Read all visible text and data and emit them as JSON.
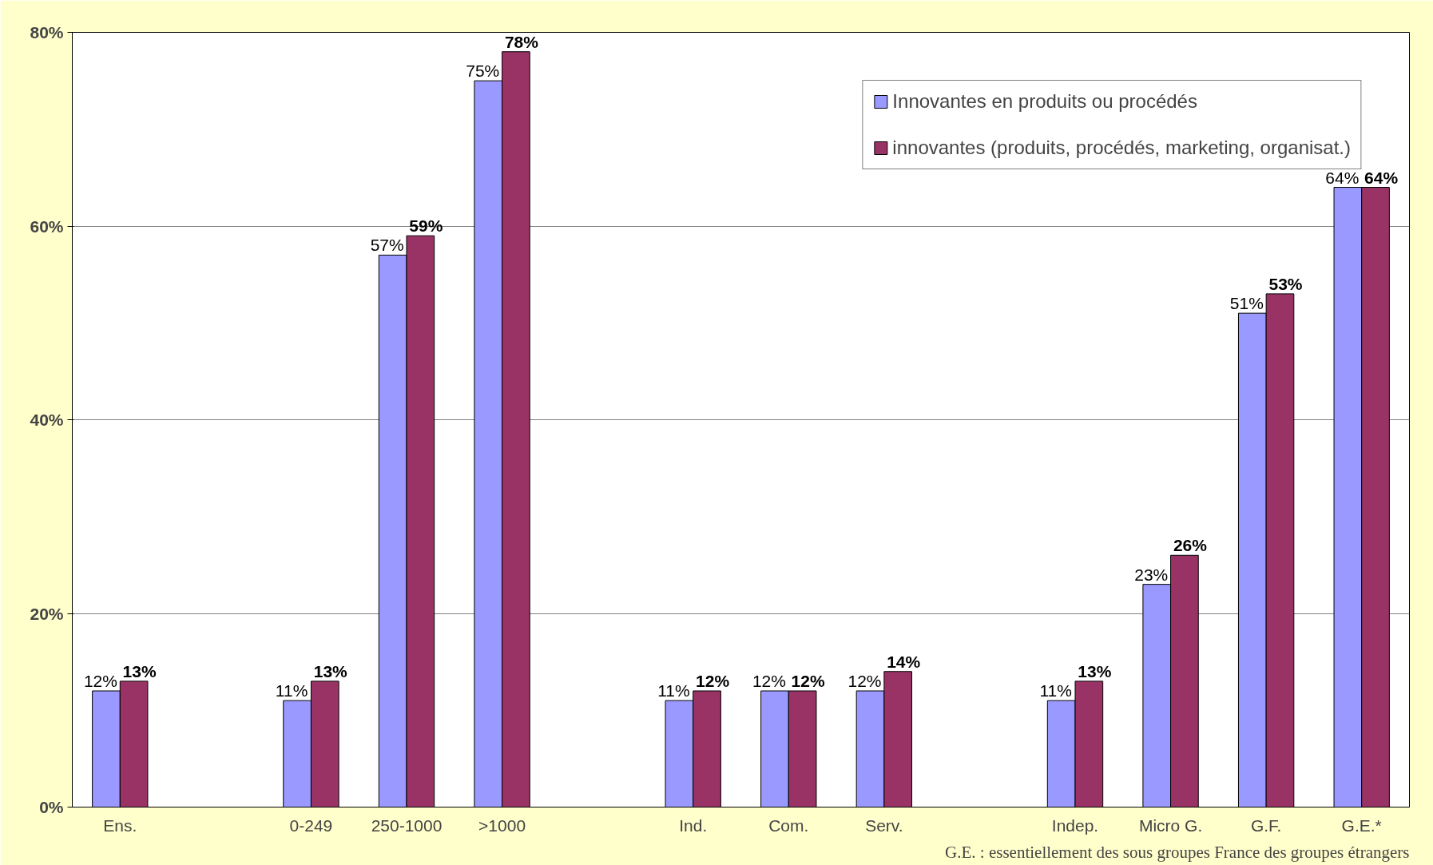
{
  "chart_data": {
    "type": "bar",
    "categories": [
      "Ens.",
      null,
      "0-249",
      "250-1000",
      ">1000",
      null,
      "Ind.",
      "Com.",
      "Serv.",
      null,
      "Indep.",
      "Micro G.",
      "G.F.",
      "G.E.*"
    ],
    "series": [
      {
        "name": "Innovantes en produits ou procédés",
        "color": "#9999ff",
        "values": [
          12,
          null,
          11,
          57,
          75,
          null,
          11,
          12,
          12,
          null,
          11,
          23,
          51,
          64
        ],
        "value_labels": [
          "12%",
          null,
          "11%",
          "57%",
          "75%",
          null,
          "11%",
          "12%",
          "12%",
          null,
          "11%",
          "23%",
          "51%",
          "64%"
        ]
      },
      {
        "name": "innovantes (produits, procédés, marketing, organisat.)",
        "color": "#993366",
        "values": [
          13,
          null,
          13,
          59,
          78,
          null,
          12,
          12,
          14,
          null,
          13,
          26,
          53,
          64
        ],
        "value_labels": [
          "13%",
          null,
          "13%",
          "59%",
          "78%",
          null,
          "12%",
          "12%",
          "14%",
          null,
          "13%",
          "26%",
          "53%",
          "64%"
        ]
      }
    ],
    "ylim": [
      0,
      80
    ],
    "yticks": [
      {
        "value": 0,
        "label": "0%"
      },
      {
        "value": 20,
        "label": "20%"
      },
      {
        "value": 40,
        "label": "40%"
      },
      {
        "value": 60,
        "label": "60%"
      },
      {
        "value": 80,
        "label": "80%"
      }
    ],
    "grid": "y",
    "legend": "top right",
    "annotations": [
      "G.E. : essentiellement des sous groupes France des groupes étrangers"
    ]
  }
}
